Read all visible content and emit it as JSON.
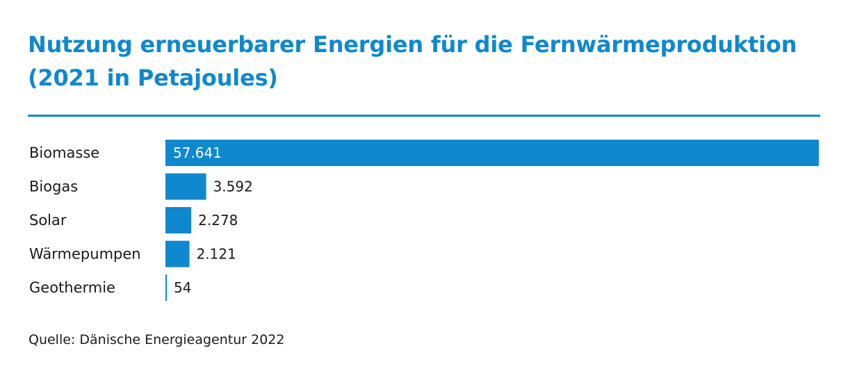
{
  "title_line1": "Nutzung erneuerbarer Energien für die Fernwärmeproduktion",
  "title_line2": "(2021 in Petajoules)",
  "source": "Quelle: Dänische Energieagentur 2022",
  "colors": {
    "accent": "#0f88d0",
    "text": "#1a1a1a",
    "label_on_bar": "#ffffff"
  },
  "chart_data": {
    "type": "bar",
    "orientation": "horizontal",
    "title": "Nutzung erneuerbarer Energien für die Fernwärmeproduktion (2021 in Petajoules)",
    "categories": [
      "Biomasse",
      "Biogas",
      "Solar",
      "Wärmepumpen",
      "Geothermie"
    ],
    "values": [
      57641,
      3592,
      2278,
      2121,
      54
    ],
    "value_labels": [
      "57.641",
      "3.592",
      "2.278",
      "2.121",
      "54"
    ],
    "xlim": [
      0,
      57641
    ],
    "xlabel": "",
    "ylabel": "",
    "grid": false,
    "legend": "none"
  }
}
